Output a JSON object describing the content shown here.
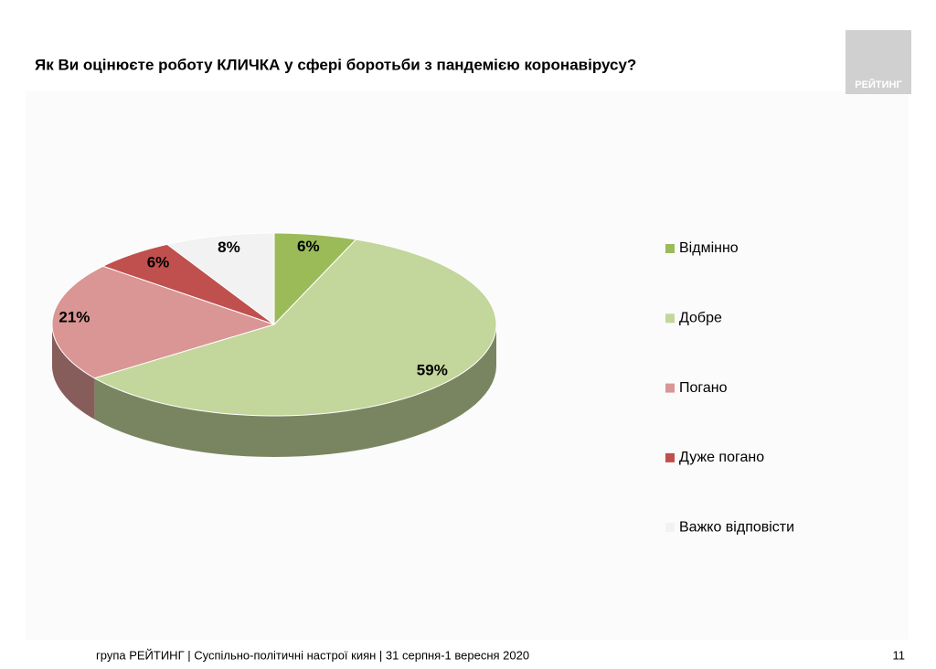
{
  "chart_data": {
    "type": "pie3d",
    "title": "Як Ви оцінюєте роботу КЛИЧКА у сфері боротьби з пандемією коронавірусу?",
    "categories": [
      "Відмінно",
      "Добре",
      "Погано",
      "Дуже погано",
      "Важко відповісти"
    ],
    "values": [
      6,
      59,
      21,
      6,
      8
    ],
    "value_labels": [
      "6%",
      "59%",
      "21%",
      "6%",
      "8%"
    ],
    "colors": [
      "#9bbb59",
      "#c3d69b",
      "#d99694",
      "#c0504d",
      "#f2f2f2"
    ],
    "legend": "right"
  },
  "logo": "РЕЙТИНГ",
  "footer": "група РЕЙТИНГ  |  Суспільно-політичні настрої киян | 31 серпня-1 вересня  2020",
  "page_number": "11"
}
